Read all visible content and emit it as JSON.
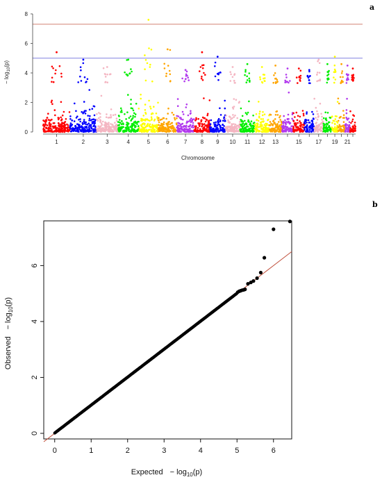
{
  "panel_a": {
    "label": "a"
  },
  "panel_b": {
    "label": "b"
  },
  "chart_data": [
    {
      "type": "scatter",
      "subtype": "manhattan",
      "xlabel": "Chromosome",
      "ylabel_prefix": "− log",
      "ylabel_sub": "10",
      "ylabel_suffix": "(p)",
      "ylim": [
        0,
        8
      ],
      "yticks": [
        "0",
        "2",
        "4",
        "6",
        "8"
      ],
      "genome_wide_line": 7.3,
      "suggestive_line": 5.0,
      "line_colors": {
        "genome_wide": "#d08070",
        "suggestive": "#8080e0"
      },
      "chromosomes": [
        {
          "chr": "1",
          "label": "1",
          "color": "#ff0000",
          "peak": 5.4
        },
        {
          "chr": "2",
          "label": "2",
          "color": "#0000ff",
          "peak": 4.9
        },
        {
          "chr": "3",
          "label": "3",
          "color": "#f4b6c2",
          "peak": 4.4
        },
        {
          "chr": "4",
          "label": "4",
          "color": "#00ee00",
          "peak": 4.9
        },
        {
          "chr": "5",
          "label": "5",
          "color": "#ffff00",
          "peak": 7.6
        },
        {
          "chr": "6",
          "label": "6",
          "color": "#ffa500",
          "peak": 5.6
        },
        {
          "chr": "7",
          "label": "7",
          "color": "#b23aee",
          "peak": 4.2
        },
        {
          "chr": "8",
          "label": "8",
          "color": "#ff0000",
          "peak": 5.4
        },
        {
          "chr": "9",
          "label": "9",
          "color": "#0000ff",
          "peak": 5.1
        },
        {
          "chr": "10",
          "label": "10",
          "color": "#f4b6c2",
          "peak": 4.4
        },
        {
          "chr": "11",
          "label": "11",
          "color": "#00ee00",
          "peak": 4.6
        },
        {
          "chr": "12",
          "label": "12",
          "color": "#ffff00",
          "peak": 4.4
        },
        {
          "chr": "13",
          "label": "13",
          "color": "#ffa500",
          "peak": 4.5
        },
        {
          "chr": "14",
          "label": "",
          "color": "#b23aee",
          "peak": 4.3
        },
        {
          "chr": "15",
          "label": "15",
          "color": "#ff0000",
          "peak": 4.3
        },
        {
          "chr": "16",
          "label": "",
          "color": "#0000ff",
          "peak": 4.2
        },
        {
          "chr": "17",
          "label": "17",
          "color": "#f4b6c2",
          "peak": 4.9
        },
        {
          "chr": "18",
          "label": "",
          "color": "#00ee00",
          "peak": 4.6
        },
        {
          "chr": "19",
          "label": "19",
          "color": "#ffff00",
          "peak": 5.1
        },
        {
          "chr": "20",
          "label": "",
          "color": "#ffa500",
          "peak": 4.6
        },
        {
          "chr": "21",
          "label": "21",
          "color": "#b23aee",
          "peak": 4.5
        },
        {
          "chr": "22",
          "label": "",
          "color": "#ff0000",
          "peak": 4.3
        }
      ]
    },
    {
      "type": "scatter",
      "subtype": "qq",
      "xlabel_word": "Expected",
      "ylabel_word": "Observed",
      "log_prefix": "− log",
      "log_sub": "10",
      "log_suffix": "(p)",
      "xlim": [
        -0.3,
        6.5
      ],
      "ylim": [
        -0.2,
        7.6
      ],
      "xticks": [
        0,
        1,
        2,
        3,
        4,
        5,
        6
      ],
      "yticks": [
        0,
        2,
        4,
        6
      ],
      "reference_line": {
        "slope": 1,
        "intercept": 0,
        "color": "#c0503c"
      },
      "bulk_points": {
        "from": 0,
        "to": 5.0
      },
      "tail_points": [
        {
          "x": 5.02,
          "y": 5.05
        },
        {
          "x": 5.06,
          "y": 5.08
        },
        {
          "x": 5.1,
          "y": 5.1
        },
        {
          "x": 5.14,
          "y": 5.12
        },
        {
          "x": 5.18,
          "y": 5.13
        },
        {
          "x": 5.22,
          "y": 5.15
        },
        {
          "x": 5.3,
          "y": 5.35
        },
        {
          "x": 5.38,
          "y": 5.4
        },
        {
          "x": 5.45,
          "y": 5.45
        },
        {
          "x": 5.55,
          "y": 5.55
        },
        {
          "x": 5.65,
          "y": 5.75
        },
        {
          "x": 5.75,
          "y": 6.28
        },
        {
          "x": 6.0,
          "y": 7.3
        },
        {
          "x": 6.45,
          "y": 7.58
        }
      ]
    }
  ]
}
